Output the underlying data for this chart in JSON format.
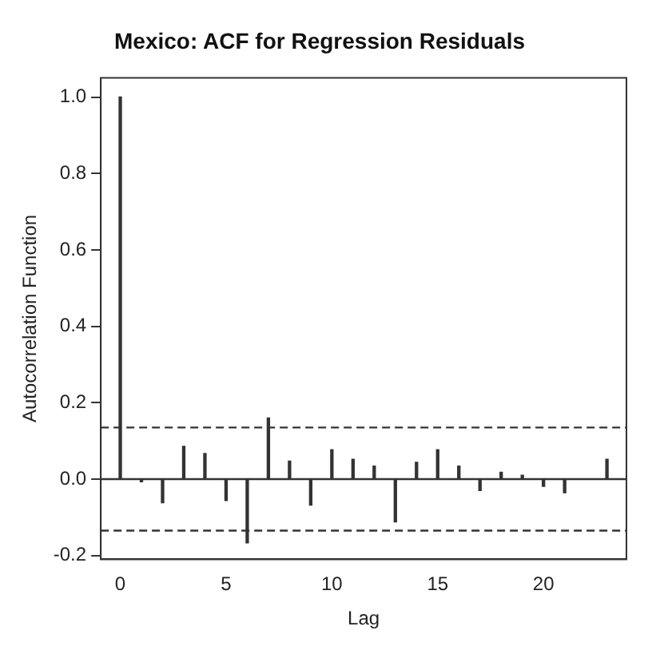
{
  "chart_data": {
    "type": "bar",
    "title": "Mexico: ACF for Regression Residuals",
    "xlabel": "Lag",
    "ylabel": "Autocorrelation Function",
    "x": [
      0,
      1,
      2,
      3,
      4,
      5,
      6,
      7,
      8,
      9,
      10,
      11,
      12,
      13,
      14,
      15,
      16,
      17,
      18,
      19,
      20,
      21,
      22,
      23
    ],
    "values": [
      1.0,
      -0.007,
      -0.062,
      0.086,
      0.067,
      -0.056,
      -0.167,
      0.16,
      0.047,
      -0.068,
      0.077,
      0.052,
      0.034,
      -0.112,
      0.044,
      0.077,
      0.034,
      -0.03,
      0.018,
      0.01,
      -0.019,
      -0.036,
      0.0,
      0.052
    ],
    "color": "#333333",
    "xlim": [
      -0.92,
      23.92
    ],
    "ylim": [
      -0.21,
      1.05
    ],
    "xticks": [
      0,
      5,
      10,
      15,
      20
    ],
    "yticks": [
      {
        "value": -0.2,
        "label": "-0.2"
      },
      {
        "value": 0,
        "label": "0.0"
      },
      {
        "value": 0.2,
        "label": "0.2"
      },
      {
        "value": 0.4,
        "label": "0.4"
      },
      {
        "value": 0.6,
        "label": "0.6"
      },
      {
        "value": 0.8,
        "label": "0.8"
      },
      {
        "value": 1,
        "label": "1.0"
      }
    ],
    "ref_lines": [
      {
        "axis": "y",
        "value": 0,
        "label": null,
        "color": "#333333",
        "line_style": "solid"
      },
      {
        "axis": "y",
        "value": 0.135,
        "label": null,
        "color": "#333333",
        "line_style": "dashed"
      },
      {
        "axis": "y",
        "value": -0.135,
        "label": null,
        "color": "#333333",
        "line_style": "dashed"
      }
    ],
    "grid": false,
    "legend": false
  }
}
